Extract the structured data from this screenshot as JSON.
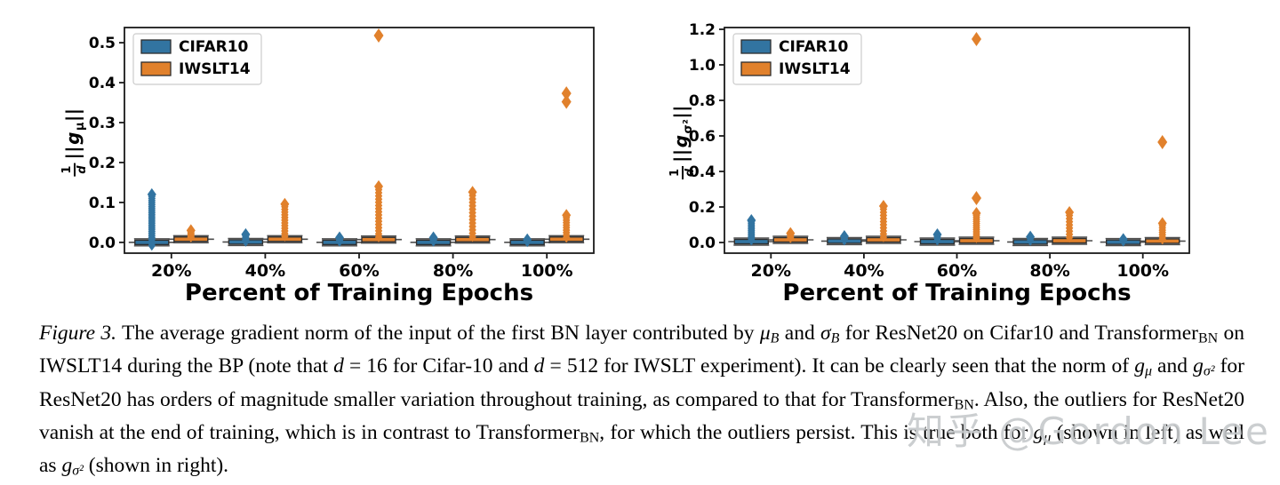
{
  "watermark": {
    "text": "知乎 @Gordon Lee",
    "color": "#c6c9cb"
  },
  "colors": {
    "cifar_blue": "#3274A1",
    "iwslt_orange": "#E1812C"
  },
  "chart_data": [
    {
      "type": "boxplot",
      "title": "",
      "xlabel": "Percent of Training Epochs",
      "ylabel": "(1/d)||g_mu||",
      "ylabel_parts": {
        "num": "1",
        "den": "d",
        "open": "||",
        "g": "g",
        "sub": "μ",
        "close": "||"
      },
      "categories": [
        "20%",
        "40%",
        "60%",
        "80%",
        "100%"
      ],
      "yticks": [
        0.0,
        0.1,
        0.2,
        0.3,
        0.4,
        0.5
      ],
      "ylim": [
        -0.027,
        0.538
      ],
      "grid": false,
      "legend_position": "upper-left",
      "legend": [
        {
          "label": "CIFAR10",
          "color": "#3274A1"
        },
        {
          "label": "IWSLT14",
          "color": "#E1812C"
        }
      ],
      "series": [
        {
          "name": "CIFAR10",
          "color": "#3274A1",
          "boxes": [
            {
              "median": 0.0,
              "stack": [
                -0.008,
                0.12,
                26
              ],
              "extremes": []
            },
            {
              "median": 0.001,
              "stack": [
                0.002,
                0.02,
                6
              ],
              "extremes": []
            },
            {
              "median": 0.0,
              "stack": [
                0.002,
                0.012,
                4
              ],
              "extremes": []
            },
            {
              "median": 0.0,
              "stack": [
                0.002,
                0.012,
                4
              ],
              "extremes": []
            },
            {
              "median": 0.0,
              "stack": [
                0.001,
                0.007,
                3
              ],
              "extremes": []
            }
          ]
        },
        {
          "name": "IWSLT14",
          "color": "#E1812C",
          "boxes": [
            {
              "median": 0.008,
              "stack": [
                0.013,
                0.03,
                6
              ],
              "extremes": []
            },
            {
              "median": 0.008,
              "stack": [
                0.015,
                0.096,
                13
              ],
              "extremes": []
            },
            {
              "median": 0.007,
              "stack": [
                0.013,
                0.14,
                17
              ],
              "extremes": [
                0.518
              ]
            },
            {
              "median": 0.007,
              "stack": [
                0.014,
                0.126,
                14
              ],
              "extremes": []
            },
            {
              "median": 0.008,
              "stack": [
                0.012,
                0.068,
                10
              ],
              "extremes": [
                0.352,
                0.373
              ]
            }
          ]
        }
      ]
    },
    {
      "type": "boxplot",
      "title": "",
      "xlabel": "Percent of Training Epochs",
      "ylabel": "(1/d)||g_sigma2||",
      "ylabel_parts": {
        "num": "1",
        "den": "d",
        "open": "||",
        "g": "g",
        "sub": "σ²",
        "close": "||"
      },
      "categories": [
        "20%",
        "40%",
        "60%",
        "80%",
        "100%"
      ],
      "yticks": [
        0.0,
        0.2,
        0.4,
        0.6,
        0.8,
        1.0,
        1.2
      ],
      "ylim": [
        -0.06,
        1.21
      ],
      "grid": false,
      "legend_position": "upper-left",
      "legend": [
        {
          "label": "CIFAR10",
          "color": "#3274A1"
        },
        {
          "label": "IWSLT14",
          "color": "#E1812C"
        }
      ],
      "series": [
        {
          "name": "CIFAR10",
          "color": "#3274A1",
          "boxes": [
            {
              "median": 0.005,
              "stack": [
                0.012,
                0.125,
                13
              ],
              "extremes": []
            },
            {
              "median": 0.008,
              "stack": [
                0.012,
                0.035,
                4
              ],
              "extremes": []
            },
            {
              "median": 0.005,
              "stack": [
                0.012,
                0.045,
                4
              ],
              "extremes": []
            },
            {
              "median": 0.003,
              "stack": [
                0.01,
                0.032,
                3
              ],
              "extremes": []
            },
            {
              "median": 0.002,
              "stack": [
                0.006,
                0.018,
                2
              ],
              "extremes": []
            }
          ]
        },
        {
          "name": "IWSLT14",
          "color": "#E1812C",
          "boxes": [
            {
              "median": 0.015,
              "stack": [
                0.025,
                0.052,
                4
              ],
              "extremes": []
            },
            {
              "median": 0.015,
              "stack": [
                0.03,
                0.205,
                11
              ],
              "extremes": []
            },
            {
              "median": 0.01,
              "stack": [
                0.025,
                0.165,
                13
              ],
              "extremes": [
                0.25,
                1.145
              ]
            },
            {
              "median": 0.01,
              "stack": [
                0.028,
                0.17,
                9
              ],
              "extremes": []
            },
            {
              "median": 0.008,
              "stack": [
                0.018,
                0.108,
                8
              ],
              "extremes": [
                0.565
              ]
            }
          ]
        }
      ]
    }
  ],
  "caption": {
    "segments": [
      {
        "s": "i",
        "t": "Figure 3."
      },
      {
        "s": "p",
        "t": " The average gradient norm of the input of the first BN layer contributed by "
      },
      {
        "s": "m",
        "t": "μ"
      },
      {
        "s": "msub",
        "t": "B"
      },
      {
        "s": "p",
        "t": " and "
      },
      {
        "s": "m",
        "t": "σ"
      },
      {
        "s": "msub",
        "t": "B"
      },
      {
        "s": "p",
        "t": " for ResNet20 on Cifar10 and Transformer"
      },
      {
        "s": "sub",
        "t": "BN"
      },
      {
        "s": "p",
        "t": " on IWSLT14 during the BP (note that "
      },
      {
        "s": "m",
        "t": "d"
      },
      {
        "s": "p",
        "t": " = 16 for Cifar-10 and "
      },
      {
        "s": "m",
        "t": "d"
      },
      {
        "s": "p",
        "t": " = 512 for IWSLT experiment). It can be clearly seen that the norm of "
      },
      {
        "s": "m",
        "t": "g"
      },
      {
        "s": "msub",
        "t": "μ"
      },
      {
        "s": "p",
        "t": " and "
      },
      {
        "s": "m",
        "t": "g"
      },
      {
        "s": "msub",
        "t": "σ²"
      },
      {
        "s": "p",
        "t": " for ResNet20 has orders of magnitude smaller variation throughout training, as compared to that for Transformer"
      },
      {
        "s": "sub",
        "t": "BN"
      },
      {
        "s": "p",
        "t": ". Also, the outliers for ResNet20 vanish at the end of training, which is in contrast to Transformer"
      },
      {
        "s": "sub",
        "t": "BN"
      },
      {
        "s": "p",
        "t": ", for which the outliers persist. This is true both for "
      },
      {
        "s": "m",
        "t": "g"
      },
      {
        "s": "msub",
        "t": "μ"
      },
      {
        "s": "p",
        "t": " (shown in left) as well as "
      },
      {
        "s": "m",
        "t": "g"
      },
      {
        "s": "msub",
        "t": "σ²"
      },
      {
        "s": "p",
        "t": " (shown in right)."
      }
    ]
  }
}
